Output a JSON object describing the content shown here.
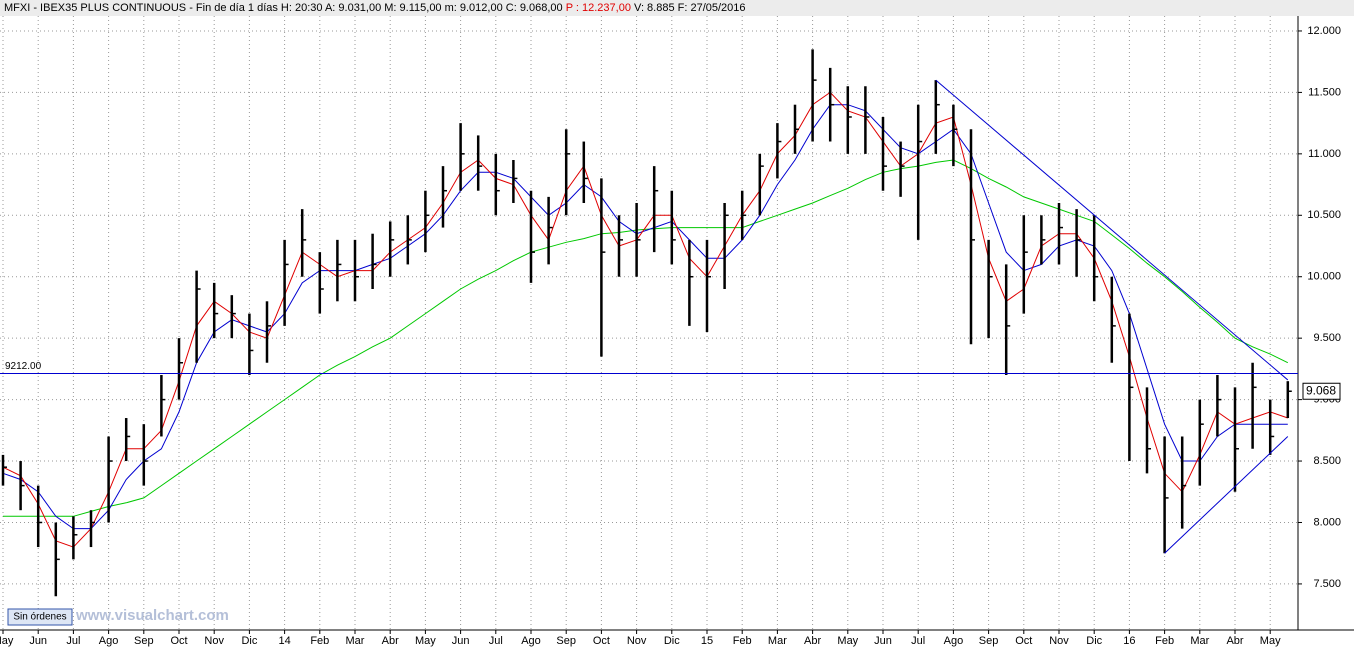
{
  "chart_data": {
    "type": "ohlc",
    "header": [
      "MFXI - IBEX35 PLUS CONTINUOUS - Fin de día 1 días  H: 20:30  A: 9.031,00  M: 9.115,00  m: 9.012,00  C: 9.068,00",
      "P : 12.237,00",
      "V: 8.885  F: 27/05/2016"
    ],
    "header_colors": [
      "#000000",
      "#e00000",
      "#000000"
    ],
    "button": "Sin órdenes",
    "watermark": "www.visualchart.com",
    "categories": [
      "May",
      null,
      "Jun",
      null,
      "Jul",
      null,
      "Ago",
      null,
      "Sep",
      null,
      "Oct",
      null,
      "Nov",
      null,
      "Dic",
      null,
      "14",
      null,
      "Feb",
      null,
      "Mar",
      null,
      "Abr",
      null,
      "May",
      null,
      "Jun",
      null,
      "Jul",
      null,
      "Ago",
      null,
      "Sep",
      null,
      "Oct",
      null,
      "Nov",
      null,
      "Dic",
      null,
      "15",
      null,
      "Feb",
      null,
      "Mar",
      null,
      "Abr",
      null,
      "May",
      null,
      "Jun",
      null,
      "Jul",
      null,
      "Ago",
      null,
      "Sep",
      null,
      "Oct",
      null,
      "Nov",
      null,
      "Dic",
      null,
      "16",
      null,
      "Feb",
      null,
      "Mar",
      null,
      "Abr",
      null,
      "May",
      null
    ],
    "high": [
      8550,
      8500,
      8300,
      8000,
      8050,
      8100,
      8700,
      8850,
      8800,
      9200,
      9500,
      10050,
      9950,
      9850,
      9700,
      9800,
      10300,
      10550,
      10200,
      10300,
      10300,
      10350,
      10450,
      10500,
      10700,
      10900,
      11250,
      11150,
      11000,
      10950,
      10700,
      10650,
      11200,
      11100,
      10800,
      10500,
      10600,
      10900,
      10700,
      10300,
      10300,
      10600,
      10700,
      11000,
      11250,
      11400,
      11850,
      11700,
      11550,
      11550,
      11300,
      11100,
      11400,
      11600,
      11400,
      11200,
      10300,
      10100,
      10500,
      10500,
      10600,
      10550,
      10500,
      10000,
      9700,
      9100,
      8700,
      8700,
      9000,
      9200,
      9100,
      9300,
      9000,
      9150
    ],
    "low": [
      8300,
      8100,
      7800,
      7400,
      7700,
      7800,
      8000,
      8500,
      8300,
      8700,
      9000,
      9300,
      9500,
      9500,
      9200,
      9300,
      9600,
      10000,
      9700,
      9800,
      9800,
      9900,
      10000,
      10100,
      10200,
      10400,
      10700,
      10700,
      10500,
      10600,
      9950,
      10100,
      10500,
      10600,
      9350,
      10000,
      10000,
      10200,
      10100,
      9600,
      9550,
      9900,
      10300,
      10500,
      10800,
      11000,
      11100,
      11100,
      11000,
      11000,
      10700,
      10650,
      10300,
      11000,
      10900,
      9450,
      9500,
      9200,
      9700,
      10100,
      10100,
      10000,
      9800,
      9300,
      8500,
      8400,
      7750,
      7950,
      8300,
      8700,
      8250,
      8600,
      8550,
      8850
    ],
    "close": [
      8450,
      8300,
      8000,
      7700,
      7900,
      8000,
      8500,
      8700,
      8500,
      9000,
      9300,
      9900,
      9700,
      9700,
      9400,
      9600,
      10100,
      10300,
      9900,
      10100,
      10000,
      10100,
      10300,
      10300,
      10500,
      10700,
      11000,
      10900,
      10700,
      10800,
      10200,
      10400,
      11000,
      10800,
      10200,
      10300,
      10300,
      10700,
      10300,
      10000,
      10000,
      10500,
      10500,
      10900,
      11100,
      11200,
      11600,
      11400,
      11300,
      11300,
      10900,
      10900,
      11100,
      11400,
      11200,
      10300,
      10000,
      9600,
      10200,
      10300,
      10400,
      10300,
      10000,
      9600,
      9100,
      8600,
      8200,
      8300,
      8800,
      9000,
      8600,
      9100,
      8700,
      9068
    ],
    "bar_color": "#000000",
    "series": [
      {
        "color": "#00c800",
        "values": [
          8050,
          8050,
          8050,
          8050,
          8050,
          8090,
          8130,
          8160,
          8200,
          8300,
          8400,
          8500,
          8600,
          8700,
          8800,
          8900,
          9000,
          9100,
          9200,
          9280,
          9350,
          9430,
          9500,
          9600,
          9700,
          9800,
          9900,
          9980,
          10050,
          10130,
          10200,
          10240,
          10280,
          10310,
          10350,
          10360,
          10380,
          10390,
          10400,
          10400,
          10400,
          10400,
          10400,
          10450,
          10500,
          10550,
          10600,
          10660,
          10720,
          10790,
          10850,
          10880,
          10900,
          10930,
          10950,
          10880,
          10800,
          10730,
          10650,
          10600,
          10550,
          10500,
          10450,
          10340,
          10230,
          10110,
          10000,
          9880,
          9750,
          9630,
          9500,
          9430,
          9370,
          9300
        ]
      },
      {
        "color": "#0000d0",
        "values": [
          8400,
          8350,
          8250,
          8050,
          7950,
          7950,
          8100,
          8350,
          8500,
          8600,
          8900,
          9300,
          9550,
          9650,
          9600,
          9550,
          9700,
          9950,
          10050,
          10050,
          10050,
          10100,
          10150,
          10250,
          10350,
          10500,
          10700,
          10850,
          10850,
          10800,
          10650,
          10500,
          10600,
          10750,
          10650,
          10450,
          10350,
          10400,
          10450,
          10300,
          10150,
          10150,
          10300,
          10500,
          10750,
          10950,
          11200,
          11400,
          11400,
          11350,
          11200,
          11050,
          11000,
          11100,
          11200,
          11000,
          10600,
          10200,
          10050,
          10100,
          10250,
          10300,
          10250,
          10050,
          9700,
          9250,
          8800,
          8500,
          8500,
          8700,
          8800,
          8800,
          8800,
          8800
        ]
      },
      {
        "color": "#e00000",
        "values": [
          8450,
          8380,
          8150,
          7850,
          7800,
          7950,
          8250,
          8600,
          8600,
          8750,
          9150,
          9600,
          9800,
          9700,
          9550,
          9500,
          9850,
          10200,
          10100,
          10000,
          10050,
          10050,
          10200,
          10300,
          10400,
          10600,
          10850,
          10950,
          10800,
          10750,
          10500,
          10300,
          10700,
          10900,
          10500,
          10250,
          10300,
          10500,
          10500,
          10150,
          10000,
          10250,
          10500,
          10700,
          11000,
          11150,
          11400,
          11500,
          11350,
          11300,
          11100,
          10900,
          11000,
          11250,
          11300,
          10750,
          10150,
          9800,
          9900,
          10250,
          10350,
          10350,
          10150,
          9800,
          9350,
          8850,
          8400,
          8250,
          8550,
          8900,
          8800,
          8850,
          8900,
          8850
        ]
      }
    ],
    "trendlines": [
      {
        "from": [
          53,
          11600
        ],
        "to": [
          73,
          9160
        ],
        "color": "#0000d0"
      },
      {
        "from": [
          66,
          7750
        ],
        "to": [
          73,
          8700
        ],
        "color": "#0000d0"
      }
    ],
    "hline": {
      "value": 9212,
      "label": "9212.00",
      "color": "#0000d0"
    },
    "last_price": {
      "value": 9068,
      "label": "9.068"
    },
    "ylim": [
      7125,
      12252
    ],
    "yticks": [
      {
        "value": 7500,
        "label": "7.500"
      },
      {
        "value": 8000,
        "label": "8.000"
      },
      {
        "value": 8500,
        "label": "8.500"
      },
      {
        "value": 9000,
        "label": "9.000"
      },
      {
        "value": 9500,
        "label": "9.500"
      },
      {
        "value": 10000,
        "label": "10.000"
      },
      {
        "value": 10500,
        "label": "10.500"
      },
      {
        "value": 11000,
        "label": "11.000"
      },
      {
        "value": 11500,
        "label": "11.500"
      },
      {
        "value": 12000,
        "label": "12.000"
      }
    ],
    "grid": true
  }
}
